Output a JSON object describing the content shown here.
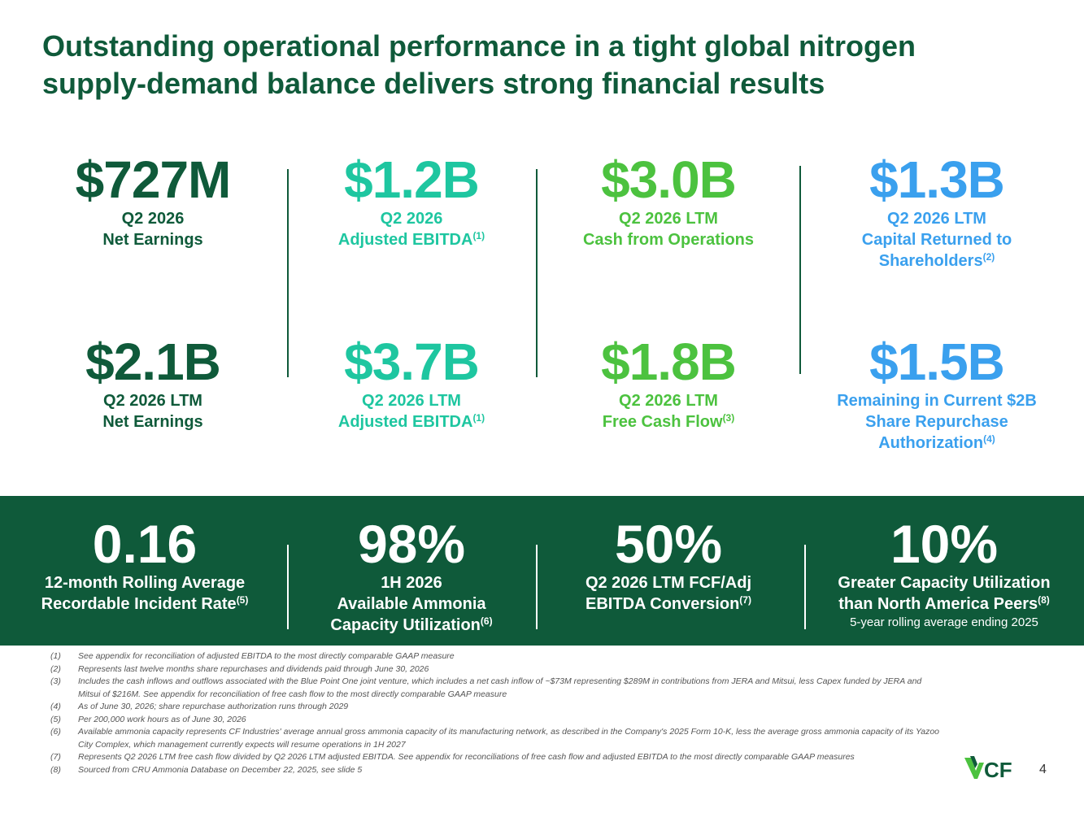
{
  "title": {
    "line1": "Outstanding operational performance in a tight global nitrogen",
    "line2": "supply-demand balance delivers strong financial results"
  },
  "metrics": {
    "m1": {
      "value": "$727M",
      "l1": "Q2 2026",
      "l2": "Net Earnings"
    },
    "m2": {
      "value": "$1.2B",
      "l1": "Q2 2026",
      "l2": "Adjusted EBITDA",
      "sup": "(1)"
    },
    "m3": {
      "value": "$3.0B",
      "l1": "Q2 2026 LTM",
      "l2": "Cash from Operations"
    },
    "m4": {
      "value": "$1.3B",
      "l1": "Q2 2026 LTM",
      "l2": "Capital Returned to",
      "l3": "Shareholders",
      "sup": "(2)"
    },
    "m5": {
      "value": "$2.1B",
      "l1": "Q2 2026 LTM",
      "l2": "Net Earnings"
    },
    "m6": {
      "value": "$3.7B",
      "l1": "Q2 2026 LTM",
      "l2": "Adjusted EBITDA",
      "sup": "(1)"
    },
    "m7": {
      "value": "$1.8B",
      "l1": "Q2 2026 LTM",
      "l2": "Free Cash Flow",
      "sup": "(3)"
    },
    "m8": {
      "value": "$1.5B",
      "l1": "Remaining in Current $2B",
      "l2": "Share Repurchase",
      "l3": "Authorization",
      "sup": "(4)"
    }
  },
  "band": {
    "b1": {
      "value": "0.16",
      "l1": "12-month Rolling Average",
      "l2": "Recordable Incident Rate",
      "sup": "(5)"
    },
    "b2": {
      "value": "98%",
      "l1": "1H 2026",
      "l2": "Available Ammonia",
      "l3": "Capacity Utilization",
      "sup": "(6)"
    },
    "b3": {
      "value": "50%",
      "l1": "Q2 2026 LTM FCF/Adj",
      "l2": "EBITDA Conversion",
      "sup": "(7)"
    },
    "b4": {
      "value": "10%",
      "l1": "Greater Capacity Utilization",
      "l2": "than North America Peers",
      "sup": "(8)",
      "note": "5-year rolling average ending 2025"
    }
  },
  "footnotes": [
    {
      "num": "(1)",
      "text": "See appendix for reconciliation of adjusted EBITDA to the most directly comparable GAAP measure"
    },
    {
      "num": "(2)",
      "text": "Represents last twelve months share repurchases and dividends paid through June 30, 2026"
    },
    {
      "num": "(3)",
      "text": "Includes the cash inflows and outflows associated with the Blue Point One joint venture, which includes a net cash inflow of ~$73M representing $289M in contributions from JERA and Mitsui, less Capex funded by JERA and Mitsui of $216M. See appendix for reconciliation of free cash flow to the most directly comparable GAAP measure"
    },
    {
      "num": "(4)",
      "text": "As of June 30, 2026; share repurchase authorization runs through 2029"
    },
    {
      "num": "(5)",
      "text": "Per 200,000 work hours as of June 30, 2026"
    },
    {
      "num": "(6)",
      "text": "Available ammonia capacity represents CF Industries' average annual gross ammonia capacity of its manufacturing network, as described in the Company's 2025 Form 10-K, less the average gross ammonia capacity of its Yazoo City Complex, which management currently expects will resume operations in 1H 2027"
    },
    {
      "num": "(7)",
      "text": "Represents Q2 2026 LTM free cash flow divided by Q2 2026 LTM adjusted EBITDA. See appendix for reconciliations of free cash flow and adjusted EBITDA to the most directly comparable GAAP measures"
    },
    {
      "num": "(8)",
      "text": "Sourced from CRU Ammonia Database on December 22, 2025, see slide 5"
    }
  ],
  "logo": {
    "text": "CF"
  },
  "page_number": "4",
  "colors": {
    "dark_green": "#0f5a3a",
    "teal": "#1ec6a0",
    "green": "#4cc23f",
    "blue": "#3aa0ee"
  }
}
